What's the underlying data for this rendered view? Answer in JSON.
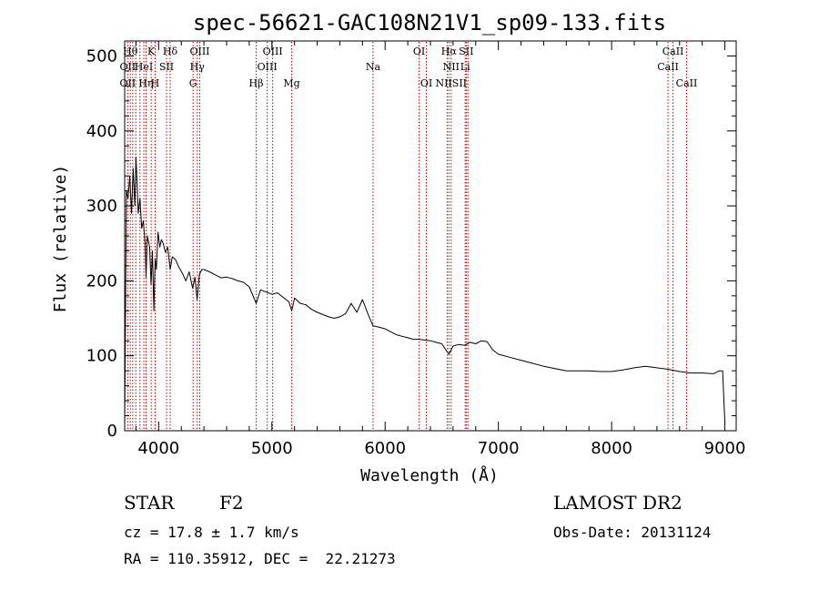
{
  "chart_data": {
    "type": "line",
    "title": "spec-56621-GAC108N21V1_sp09-133.fits",
    "xlabel": "Wavelength (Å)",
    "ylabel": "Flux (relative)",
    "xlim": [
      3700,
      9100
    ],
    "ylim": [
      0,
      520
    ],
    "xticks": [
      4000,
      5000,
      6000,
      7000,
      8000,
      9000
    ],
    "xtick_labels": [
      "4000",
      "5000",
      "6000",
      "7000",
      "8000",
      "9000"
    ],
    "yticks": [
      0,
      100,
      200,
      300,
      400,
      500
    ],
    "ytick_labels": [
      "0",
      "100",
      "200",
      "300",
      "400",
      "500"
    ],
    "grid": false,
    "line_color": "#000000",
    "marker_color": "#c00000",
    "series": [
      {
        "x": [
          3700,
          3715,
          3730,
          3745,
          3760,
          3775,
          3790,
          3800,
          3810,
          3820,
          3835,
          3850,
          3865,
          3880,
          3889,
          3900,
          3920,
          3933,
          3945,
          3958,
          3969,
          3980,
          3995,
          4010,
          4025,
          4040,
          4060,
          4080,
          4102,
          4120,
          4150,
          4180,
          4210,
          4240,
          4270,
          4300,
          4320,
          4340,
          4360,
          4380,
          4400,
          4450,
          4500,
          4550,
          4600,
          4650,
          4700,
          4750,
          4800,
          4861,
          4900,
          4950,
          5000,
          5050,
          5100,
          5150,
          5175,
          5200,
          5250,
          5300,
          5350,
          5400,
          5450,
          5500,
          5550,
          5600,
          5650,
          5700,
          5750,
          5800,
          5850,
          5893,
          5950,
          6000,
          6050,
          6100,
          6150,
          6200,
          6250,
          6300,
          6350,
          6400,
          6450,
          6500,
          6563,
          6600,
          6650,
          6700,
          6750,
          6800,
          6850,
          6900,
          6950,
          7000,
          7100,
          7200,
          7300,
          7400,
          7500,
          7600,
          7700,
          7800,
          7900,
          8000,
          8100,
          8200,
          8300,
          8400,
          8500,
          8600,
          8700,
          8800,
          8900,
          8950,
          8980,
          9000
        ],
        "y": [
          5,
          320,
          310,
          340,
          290,
          350,
          300,
          365,
          330,
          290,
          310,
          270,
          280,
          250,
          205,
          260,
          245,
          195,
          240,
          160,
          230,
          215,
          265,
          245,
          255,
          250,
          238,
          245,
          215,
          232,
          228,
          218,
          210,
          200,
          212,
          190,
          205,
          175,
          208,
          215,
          215,
          212,
          208,
          204,
          205,
          203,
          200,
          198,
          192,
          170,
          188,
          185,
          182,
          184,
          178,
          172,
          160,
          177,
          170,
          168,
          162,
          158,
          155,
          152,
          150,
          152,
          156,
          170,
          158,
          175,
          155,
          140,
          138,
          136,
          132,
          128,
          126,
          124,
          122,
          122,
          121,
          120,
          118,
          116,
          102,
          113,
          115,
          114,
          118,
          116,
          120,
          119,
          108,
          102,
          98,
          94,
          90,
          86,
          83,
          80,
          80,
          80,
          79,
          79,
          81,
          84,
          86,
          84,
          82,
          79,
          77,
          77,
          76,
          80,
          80,
          10
        ]
      }
    ],
    "line_markers": [
      {
        "x": 3727,
        "label": "OII"
      },
      {
        "x": 3750,
        "label": "Hθ"
      },
      {
        "x": 3771,
        "label": "OII"
      },
      {
        "x": 3798,
        "label": "Hθ"
      },
      {
        "x": 3835,
        "label": "Hη"
      },
      {
        "x": 3869,
        "label": "HeI"
      },
      {
        "x": 3889,
        "label": "Hη"
      },
      {
        "x": 3934,
        "label": "K"
      },
      {
        "x": 3969,
        "label": "H"
      },
      {
        "x": 4070,
        "label": "SII"
      },
      {
        "x": 4102,
        "label": "Hδ"
      },
      {
        "x": 4304,
        "label": "G"
      },
      {
        "x": 4341,
        "label": "Hγ"
      },
      {
        "x": 4363,
        "label": "OIII"
      },
      {
        "x": 4861,
        "label": "Hβ"
      },
      {
        "x": 4959,
        "label": "OIII"
      },
      {
        "x": 5007,
        "label": "OIII"
      },
      {
        "x": 5175,
        "label": "Mg"
      },
      {
        "x": 5893,
        "label": "Na"
      },
      {
        "x": 6300,
        "label": "OI"
      },
      {
        "x": 6364,
        "label": "OI"
      },
      {
        "x": 6548,
        "label": "NII"
      },
      {
        "x": 6563,
        "label": "Hα"
      },
      {
        "x": 6583,
        "label": "NII"
      },
      {
        "x": 6707,
        "label": "Li"
      },
      {
        "x": 6716,
        "label": "SII"
      },
      {
        "x": 6731,
        "label": "SII"
      },
      {
        "x": 8498,
        "label": "CaII"
      },
      {
        "x": 8542,
        "label": "CaII"
      },
      {
        "x": 8662,
        "label": "CaII"
      }
    ],
    "label_rows": [
      {
        "x": 3750,
        "row": 0,
        "label": "Hθ"
      },
      {
        "x": 3795,
        "row": 0,
        "label": ""
      },
      {
        "x": 3934,
        "row": 0,
        "label": "K"
      },
      {
        "x": 4102,
        "row": 0,
        "label": "Hδ"
      },
      {
        "x": 4363,
        "row": 0,
        "label": "OIII"
      },
      {
        "x": 5007,
        "row": 0,
        "label": "OIII"
      },
      {
        "x": 6300,
        "row": 0,
        "label": "OI"
      },
      {
        "x": 6563,
        "row": 0,
        "label": "Hα"
      },
      {
        "x": 6716,
        "row": 0,
        "label": "SII"
      },
      {
        "x": 8542,
        "row": 0,
        "label": "CaII"
      },
      {
        "x": 3727,
        "row": 1,
        "label": "OII"
      },
      {
        "x": 3869,
        "row": 1,
        "label": "HeI"
      },
      {
        "x": 4070,
        "row": 1,
        "label": "SII"
      },
      {
        "x": 4341,
        "row": 1,
        "label": "Hγ"
      },
      {
        "x": 4959,
        "row": 1,
        "label": "OIII"
      },
      {
        "x": 5893,
        "row": 1,
        "label": "Na"
      },
      {
        "x": 6583,
        "row": 1,
        "label": "NII"
      },
      {
        "x": 6707,
        "row": 1,
        "label": "Li"
      },
      {
        "x": 8498,
        "row": 1,
        "label": "CaII"
      },
      {
        "x": 3727,
        "row": 2,
        "label": "OII"
      },
      {
        "x": 3889,
        "row": 2,
        "label": "Hη"
      },
      {
        "x": 3969,
        "row": 2,
        "label": "H"
      },
      {
        "x": 4304,
        "row": 2,
        "label": "G"
      },
      {
        "x": 4861,
        "row": 2,
        "label": "Hβ"
      },
      {
        "x": 5175,
        "row": 2,
        "label": "Mg"
      },
      {
        "x": 6364,
        "row": 2,
        "label": "OI"
      },
      {
        "x": 6583,
        "row": 2,
        "label": "NIISII"
      },
      {
        "x": 8662,
        "row": 2,
        "label": "CaII"
      }
    ]
  },
  "info": {
    "object_class": "STAR",
    "subclass": "F2",
    "survey": "LAMOST DR2",
    "redshift_line": "cz = 17.8 ± 1.7 km/s",
    "obs_date_line": "Obs-Date: 20131124",
    "coords_line": "RA = 110.35912, DEC =  22.21273"
  }
}
